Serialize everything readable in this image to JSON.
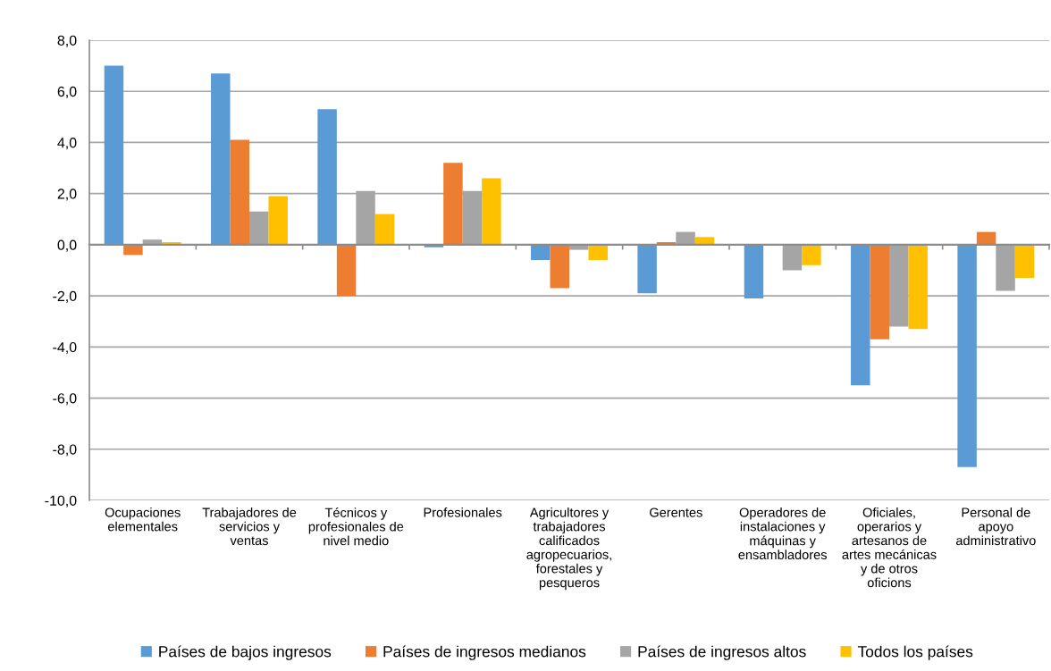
{
  "chart_data": {
    "type": "bar",
    "categories": [
      "Ocupaciones\nelementales",
      "Trabajadores de\nservicios y\nventas",
      "Técnicos y\nprofesionales de\nnivel medio",
      "Profesionales",
      "Agricultores y\ntrabajadores\ncalificados\nagropecuarios,\nforestales y\npesqueros",
      "Gerentes",
      "Operadores de\ninstalaciones y\nmáquinas y\nensambladores",
      "Oficiales,\noperarios y\nartesanos de\nartes mecánicas\ny de otros\noficions",
      "Personal de\napoyo\nadministrativo"
    ],
    "series": [
      {
        "name": "Países de bajos ingresos",
        "color": "#5b9bd5",
        "values": [
          7.0,
          6.7,
          5.3,
          -0.1,
          -0.6,
          -1.9,
          -2.1,
          -5.5,
          -8.7
        ]
      },
      {
        "name": "Países de ingresos medianos",
        "color": "#ed7d31",
        "values": [
          -0.4,
          4.1,
          -2.0,
          3.2,
          -1.7,
          0.1,
          null,
          -3.7,
          0.5
        ]
      },
      {
        "name": "Países de ingresos altos",
        "color": "#a5a5a5",
        "values": [
          0.2,
          1.3,
          2.1,
          2.1,
          -0.2,
          0.5,
          -1.0,
          -3.2,
          -1.8
        ]
      },
      {
        "name": "Todos los países",
        "color": "#ffc000",
        "values": [
          0.1,
          1.9,
          1.2,
          2.6,
          -0.6,
          0.3,
          -0.8,
          -3.3,
          -1.3
        ]
      }
    ],
    "ylim": [
      -10,
      8
    ],
    "yticks": [
      {
        "value": -10,
        "label": "-10,0"
      },
      {
        "value": -8,
        "label": "-8,0"
      },
      {
        "value": -6,
        "label": "-6,0"
      },
      {
        "value": -4,
        "label": "-4,0"
      },
      {
        "value": -2,
        "label": "-2,0"
      },
      {
        "value": 0,
        "label": "0,0"
      },
      {
        "value": 2,
        "label": "2,0"
      },
      {
        "value": 4,
        "label": "4,0"
      },
      {
        "value": 6,
        "label": "6,0"
      },
      {
        "value": 8,
        "label": "8,0"
      }
    ],
    "grid": "y",
    "legend": "bottom"
  }
}
